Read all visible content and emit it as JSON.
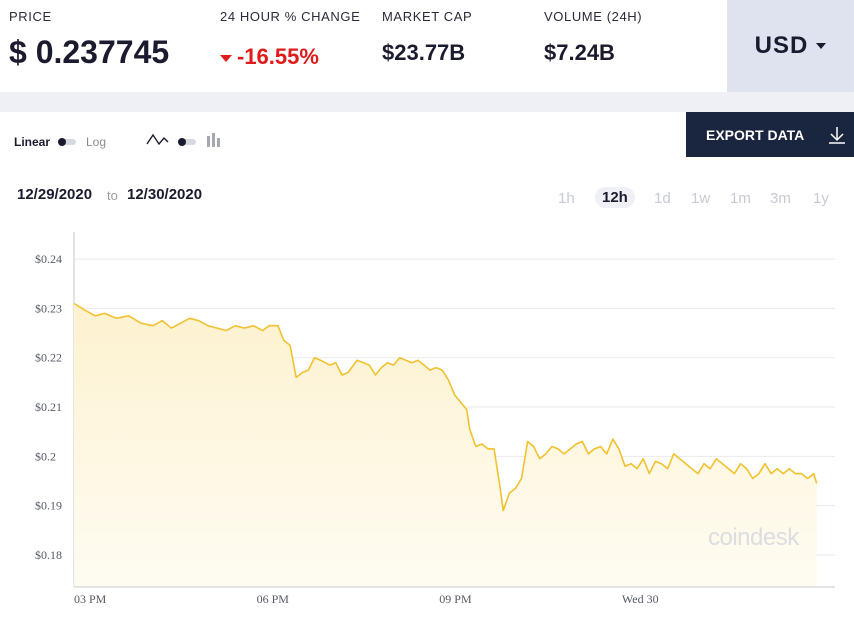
{
  "stats": {
    "price_label": "PRICE",
    "price_value": "$ 0.237745",
    "change_label": "24 HOUR % CHANGE",
    "change_value": "-16.55%",
    "marketcap_label": "MARKET CAP",
    "marketcap_value": "$23.77B",
    "volume_label": "VOLUME (24H)",
    "volume_value": "$7.24B",
    "currency": "USD"
  },
  "controls": {
    "linear_label": "Linear",
    "log_label": "Log",
    "export_label": "EXPORT DATA",
    "date_from": "12/29/2020",
    "date_to_word": "to",
    "date_to": "12/30/2020",
    "timeframes": [
      "1h",
      "12h",
      "1d",
      "1w",
      "1m",
      "3m",
      "1y"
    ],
    "active_timeframe": "12h"
  },
  "watermark": "coindesk",
  "colors": {
    "line": "#f2c12e",
    "fill_top": "#fdf2cf",
    "negative": "#e01b1b",
    "button_dark": "#1a2540",
    "currency_bg": "#dfe3f0"
  },
  "chart_data": {
    "type": "area",
    "xlabel": "",
    "ylabel": "",
    "x_ticks": [
      "03 PM",
      "06 PM",
      "09 PM",
      "Wed 30"
    ],
    "y_ticks": [
      "$0.24",
      "$0.23",
      "$0.22",
      "$0.21",
      "$0.2",
      "$0.19",
      "$0.18"
    ],
    "y_tick_values": [
      0.24,
      0.23,
      0.22,
      0.21,
      0.2,
      0.19,
      0.18
    ],
    "ylim": [
      0.1735,
      0.2455
    ],
    "x_unit": "hours after 03 PM",
    "xlim": [
      0,
      12.5
    ],
    "grid": true,
    "series": [
      {
        "points": [
          [
            0.0,
            0.231
          ],
          [
            0.2,
            0.2295
          ],
          [
            0.35,
            0.2285
          ],
          [
            0.5,
            0.229
          ],
          [
            0.7,
            0.228
          ],
          [
            0.9,
            0.2285
          ],
          [
            1.1,
            0.227
          ],
          [
            1.3,
            0.2265
          ],
          [
            1.45,
            0.2275
          ],
          [
            1.6,
            0.226
          ],
          [
            1.75,
            0.227
          ],
          [
            1.9,
            0.228
          ],
          [
            2.05,
            0.2275
          ],
          [
            2.2,
            0.2265
          ],
          [
            2.35,
            0.226
          ],
          [
            2.5,
            0.2255
          ],
          [
            2.65,
            0.2265
          ],
          [
            2.8,
            0.226
          ],
          [
            2.95,
            0.2265
          ],
          [
            3.1,
            0.2255
          ],
          [
            3.2,
            0.2265
          ],
          [
            3.35,
            0.2265
          ],
          [
            3.45,
            0.2235
          ],
          [
            3.55,
            0.2225
          ],
          [
            3.65,
            0.216
          ],
          [
            3.75,
            0.217
          ],
          [
            3.85,
            0.2175
          ],
          [
            3.95,
            0.22
          ],
          [
            4.05,
            0.2195
          ],
          [
            4.2,
            0.2185
          ],
          [
            4.3,
            0.219
          ],
          [
            4.4,
            0.2165
          ],
          [
            4.5,
            0.217
          ],
          [
            4.65,
            0.2195
          ],
          [
            4.75,
            0.219
          ],
          [
            4.85,
            0.2185
          ],
          [
            4.95,
            0.2165
          ],
          [
            5.05,
            0.218
          ],
          [
            5.15,
            0.219
          ],
          [
            5.25,
            0.2185
          ],
          [
            5.35,
            0.22
          ],
          [
            5.45,
            0.2195
          ],
          [
            5.55,
            0.219
          ],
          [
            5.65,
            0.2195
          ],
          [
            5.75,
            0.2185
          ],
          [
            5.85,
            0.2175
          ],
          [
            5.95,
            0.218
          ],
          [
            6.05,
            0.2175
          ],
          [
            6.15,
            0.2155
          ],
          [
            6.25,
            0.2125
          ],
          [
            6.35,
            0.211
          ],
          [
            6.45,
            0.2095
          ],
          [
            6.5,
            0.2055
          ],
          [
            6.6,
            0.202
          ],
          [
            6.7,
            0.2025
          ],
          [
            6.8,
            0.2015
          ],
          [
            6.9,
            0.2015
          ],
          [
            7.0,
            0.1935
          ],
          [
            7.05,
            0.189
          ],
          [
            7.15,
            0.1925
          ],
          [
            7.25,
            0.1935
          ],
          [
            7.35,
            0.1955
          ],
          [
            7.45,
            0.203
          ],
          [
            7.55,
            0.202
          ],
          [
            7.65,
            0.1995
          ],
          [
            7.75,
            0.2005
          ],
          [
            7.85,
            0.202
          ],
          [
            7.95,
            0.2015
          ],
          [
            8.05,
            0.2005
          ],
          [
            8.15,
            0.2015
          ],
          [
            8.25,
            0.2025
          ],
          [
            8.35,
            0.203
          ],
          [
            8.45,
            0.2005
          ],
          [
            8.55,
            0.2015
          ],
          [
            8.65,
            0.202
          ],
          [
            8.75,
            0.2005
          ],
          [
            8.85,
            0.2035
          ],
          [
            8.95,
            0.2015
          ],
          [
            9.05,
            0.198
          ],
          [
            9.15,
            0.1985
          ],
          [
            9.25,
            0.1975
          ],
          [
            9.35,
            0.1995
          ],
          [
            9.45,
            0.1965
          ],
          [
            9.55,
            0.199
          ],
          [
            9.65,
            0.1985
          ],
          [
            9.75,
            0.1975
          ],
          [
            9.85,
            0.2005
          ],
          [
            9.95,
            0.1995
          ],
          [
            10.05,
            0.1985
          ],
          [
            10.15,
            0.1975
          ],
          [
            10.25,
            0.1965
          ],
          [
            10.35,
            0.1985
          ],
          [
            10.45,
            0.1975
          ],
          [
            10.55,
            0.1995
          ],
          [
            10.65,
            0.1985
          ],
          [
            10.75,
            0.1975
          ],
          [
            10.85,
            0.1965
          ],
          [
            10.95,
            0.1985
          ],
          [
            11.05,
            0.1975
          ],
          [
            11.15,
            0.1955
          ],
          [
            11.25,
            0.1965
          ],
          [
            11.35,
            0.1985
          ],
          [
            11.45,
            0.1965
          ],
          [
            11.55,
            0.1975
          ],
          [
            11.65,
            0.1965
          ],
          [
            11.75,
            0.1975
          ],
          [
            11.85,
            0.1965
          ],
          [
            11.95,
            0.1965
          ],
          [
            12.05,
            0.1955
          ],
          [
            12.15,
            0.1965
          ],
          [
            12.2,
            0.1945
          ]
        ]
      }
    ]
  }
}
